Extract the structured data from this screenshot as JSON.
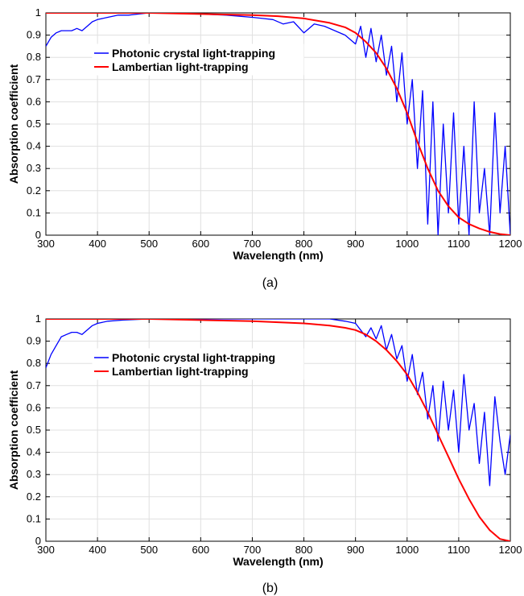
{
  "colors": {
    "photonic": "#0000ff",
    "lambertian": "#ff0000",
    "grid": "#e0e0e0"
  },
  "chart_data": [
    {
      "type": "line",
      "caption": "(a)",
      "xlabel": "Wavelength (nm)",
      "ylabel": "Absorption coefficient",
      "xlim": [
        300,
        1200
      ],
      "ylim": [
        0,
        1
      ],
      "xticks": [
        "300",
        "400",
        "500",
        "600",
        "700",
        "800",
        "900",
        "1000",
        "1100",
        "1200"
      ],
      "yticks": [
        "0",
        "0.1",
        "0.2",
        "0.3",
        "0.4",
        "0.5",
        "0.6",
        "0.7",
        "0.8",
        "0.9",
        "1"
      ],
      "grid": true,
      "legend_position": "upper-left",
      "series": [
        {
          "name": "Photonic crystal light-trapping",
          "color": "#0000ff",
          "x": [
            300,
            310,
            320,
            330,
            340,
            350,
            360,
            370,
            380,
            390,
            400,
            420,
            440,
            460,
            480,
            500,
            550,
            600,
            650,
            700,
            720,
            740,
            760,
            780,
            800,
            820,
            840,
            860,
            880,
            900,
            910,
            920,
            930,
            940,
            950,
            960,
            970,
            980,
            990,
            1000,
            1010,
            1020,
            1030,
            1040,
            1050,
            1060,
            1070,
            1080,
            1090,
            1100,
            1110,
            1120,
            1130,
            1140,
            1150,
            1160,
            1170,
            1180,
            1190,
            1200
          ],
          "y": [
            0.85,
            0.89,
            0.91,
            0.92,
            0.92,
            0.92,
            0.93,
            0.92,
            0.94,
            0.96,
            0.97,
            0.98,
            0.99,
            0.99,
            0.995,
            1.0,
            1.0,
            0.995,
            0.99,
            0.98,
            0.975,
            0.97,
            0.95,
            0.96,
            0.91,
            0.95,
            0.94,
            0.92,
            0.9,
            0.86,
            0.94,
            0.8,
            0.93,
            0.78,
            0.9,
            0.72,
            0.85,
            0.6,
            0.82,
            0.5,
            0.7,
            0.3,
            0.65,
            0.05,
            0.6,
            0.0,
            0.5,
            0.1,
            0.55,
            0.05,
            0.4,
            0.0,
            0.6,
            0.1,
            0.3,
            0.0,
            0.55,
            0.1,
            0.4,
            0.0
          ]
        },
        {
          "name": "Lambertian light-trapping",
          "color": "#ff0000",
          "x": [
            300,
            400,
            500,
            600,
            700,
            750,
            800,
            850,
            880,
            900,
            920,
            940,
            960,
            980,
            1000,
            1020,
            1040,
            1060,
            1080,
            1100,
            1120,
            1140,
            1160,
            1180,
            1200
          ],
          "y": [
            1.0,
            1.0,
            1.0,
            0.995,
            0.99,
            0.985,
            0.975,
            0.955,
            0.935,
            0.91,
            0.87,
            0.82,
            0.75,
            0.66,
            0.55,
            0.42,
            0.3,
            0.2,
            0.13,
            0.08,
            0.05,
            0.03,
            0.015,
            0.005,
            0.0
          ]
        }
      ]
    },
    {
      "type": "line",
      "caption": "(b)",
      "xlabel": "Wavelength (nm)",
      "ylabel": "Absorption coefficient",
      "xlim": [
        300,
        1200
      ],
      "ylim": [
        0,
        1
      ],
      "xticks": [
        "300",
        "400",
        "500",
        "600",
        "700",
        "800",
        "900",
        "1000",
        "1100",
        "1200"
      ],
      "yticks": [
        "0",
        "0.1",
        "0.2",
        "0.3",
        "0.4",
        "0.5",
        "0.6",
        "0.7",
        "0.8",
        "0.9",
        "1"
      ],
      "grid": true,
      "legend_position": "upper-left",
      "series": [
        {
          "name": "Photonic crystal light-trapping",
          "color": "#0000ff",
          "x": [
            300,
            310,
            320,
            330,
            340,
            350,
            360,
            370,
            380,
            390,
            400,
            420,
            450,
            500,
            600,
            700,
            800,
            850,
            880,
            900,
            910,
            920,
            930,
            940,
            950,
            960,
            970,
            980,
            990,
            1000,
            1010,
            1020,
            1030,
            1040,
            1050,
            1060,
            1070,
            1080,
            1090,
            1100,
            1110,
            1120,
            1130,
            1140,
            1150,
            1160,
            1170,
            1180,
            1190,
            1200
          ],
          "y": [
            0.78,
            0.84,
            0.88,
            0.92,
            0.93,
            0.94,
            0.94,
            0.93,
            0.95,
            0.97,
            0.98,
            0.99,
            0.995,
            1.0,
            1.0,
            1.0,
            1.0,
            1.0,
            0.99,
            0.98,
            0.95,
            0.92,
            0.96,
            0.91,
            0.97,
            0.86,
            0.93,
            0.82,
            0.88,
            0.72,
            0.84,
            0.66,
            0.76,
            0.55,
            0.7,
            0.45,
            0.72,
            0.5,
            0.68,
            0.4,
            0.75,
            0.5,
            0.62,
            0.35,
            0.58,
            0.25,
            0.65,
            0.45,
            0.3,
            0.48
          ]
        },
        {
          "name": "Lambertian light-trapping",
          "color": "#ff0000",
          "x": [
            300,
            400,
            500,
            600,
            700,
            800,
            850,
            880,
            900,
            920,
            940,
            960,
            980,
            1000,
            1020,
            1040,
            1060,
            1080,
            1100,
            1120,
            1140,
            1160,
            1180,
            1200
          ],
          "y": [
            1.0,
            1.0,
            1.0,
            0.995,
            0.99,
            0.98,
            0.97,
            0.96,
            0.95,
            0.93,
            0.9,
            0.86,
            0.81,
            0.75,
            0.67,
            0.58,
            0.48,
            0.38,
            0.28,
            0.19,
            0.11,
            0.05,
            0.01,
            0.0
          ]
        }
      ]
    }
  ]
}
